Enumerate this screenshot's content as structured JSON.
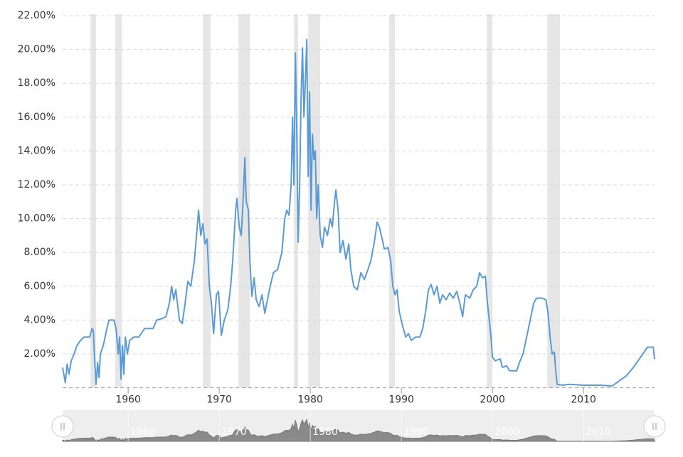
{
  "chart_data": {
    "type": "line",
    "x": [
      1952.8,
      1953.1,
      1953.3,
      1953.5,
      1953.75,
      1954.06,
      1954.38,
      1954.77,
      1955.16,
      1955.78,
      1956.02,
      1956.17,
      1956.33,
      1956.48,
      1956.64,
      1956.8,
      1956.95,
      1957.27,
      1957.58,
      1957.89,
      1958.44,
      1958.67,
      1958.91,
      1959.06,
      1959.22,
      1959.38,
      1959.53,
      1959.69,
      1959.92,
      1960.16,
      1960.63,
      1961.17,
      1961.8,
      1962.73,
      1963.13,
      1963.75,
      1964.14,
      1964.53,
      1964.77,
      1965.0,
      1965.23,
      1965.63,
      1965.94,
      1966.25,
      1966.56,
      1966.88,
      1967.27,
      1967.58,
      1967.73,
      1967.97,
      1968.2,
      1968.44,
      1968.67,
      1968.91,
      1969.14,
      1969.38,
      1969.69,
      1969.92,
      1970.23,
      1970.55,
      1970.94,
      1971.25,
      1971.48,
      1971.8,
      1971.95,
      1972.19,
      1972.42,
      1972.66,
      1972.81,
      1972.97,
      1973.2,
      1973.36,
      1973.59,
      1973.83,
      1974.06,
      1974.38,
      1974.69,
      1975.0,
      1975.47,
      1975.94,
      1976.41,
      1976.88,
      1977.19,
      1977.42,
      1977.66,
      1977.89,
      1978.05,
      1978.2,
      1978.36,
      1978.52,
      1978.67,
      1978.83,
      1978.98,
      1979.14,
      1979.3,
      1979.45,
      1979.61,
      1979.77,
      1979.92,
      1980.08,
      1980.23,
      1980.39,
      1980.55,
      1980.7,
      1980.86,
      1981.09,
      1981.33,
      1981.56,
      1981.88,
      1982.19,
      1982.42,
      1982.66,
      1982.81,
      1983.05,
      1983.28,
      1983.59,
      1983.91,
      1984.22,
      1984.45,
      1984.77,
      1985.16,
      1985.55,
      1985.94,
      1986.33,
      1986.64,
      1987.03,
      1987.34,
      1987.58,
      1987.89,
      1988.13,
      1988.52,
      1988.83,
      1989.06,
      1989.3,
      1989.53,
      1989.77,
      1990.16,
      1990.47,
      1990.78,
      1991.09,
      1991.56,
      1992.03,
      1992.34,
      1992.66,
      1992.97,
      1993.28,
      1993.59,
      1993.91,
      1994.22,
      1994.53,
      1994.92,
      1995.31,
      1995.7,
      1996.09,
      1996.41,
      1996.72,
      1997.03,
      1997.5,
      1997.89,
      1998.28,
      1998.59,
      1998.91,
      1999.22,
      1999.45,
      1999.69,
      1999.84,
      2000.0,
      2000.31,
      2000.86,
      2001.09,
      2001.56,
      2001.88,
      2002.66,
      2002.97,
      2003.36,
      2003.75,
      2004.14,
      2004.53,
      2004.84,
      2005.47,
      2005.86,
      2006.09,
      2006.33,
      2006.56,
      2006.8,
      2006.95,
      2007.11,
      2007.66,
      2008.44,
      2010.0,
      2011.95,
      2013.13,
      2013.91,
      2014.69,
      2015.47,
      2016.25,
      2017.03,
      2017.66,
      2017.81
    ],
    "series": [
      {
        "color": "#5b9bd5",
        "values": [
          1.2,
          0.3,
          1.4,
          0.8,
          1.6,
          2.0,
          2.5,
          2.8,
          3.0,
          3.0,
          3.5,
          3.4,
          1.5,
          0.2,
          1.5,
          0.6,
          2.0,
          2.5,
          3.3,
          4.0,
          4.0,
          3.5,
          2.0,
          3.0,
          0.5,
          2.5,
          0.8,
          3.0,
          2.0,
          2.8,
          3.0,
          3.0,
          3.5,
          3.5,
          4.0,
          4.1,
          4.2,
          5.0,
          6.0,
          5.2,
          5.8,
          4.0,
          3.8,
          5.0,
          6.3,
          6.0,
          7.5,
          9.5,
          10.5,
          9.0,
          9.7,
          8.5,
          8.8,
          6.0,
          5.0,
          3.2,
          5.5,
          5.7,
          3.1,
          4.0,
          4.6,
          6.0,
          7.5,
          10.5,
          11.2,
          9.5,
          9.0,
          11.5,
          13.6,
          11.0,
          10.5,
          7.5,
          5.4,
          6.5,
          5.2,
          4.8,
          5.5,
          4.4,
          5.7,
          6.8,
          7.0,
          8.0,
          10.0,
          10.5,
          10.2,
          12.0,
          16.0,
          12.0,
          19.8,
          15.0,
          8.6,
          12.0,
          17.0,
          20.1,
          16.0,
          18.0,
          20.6,
          12.5,
          17.5,
          10.5,
          15.0,
          13.5,
          14.0,
          10.0,
          12.0,
          9.0,
          8.3,
          9.5,
          9.0,
          10.0,
          9.5,
          11.0,
          11.7,
          10.5,
          8.0,
          8.7,
          7.6,
          8.5,
          7.0,
          6.0,
          5.8,
          6.8,
          6.4,
          7.0,
          7.5,
          8.6,
          9.8,
          9.5,
          8.8,
          8.2,
          8.3,
          7.5,
          6.0,
          5.5,
          5.8,
          4.5,
          3.6,
          3.0,
          3.2,
          2.8,
          3.0,
          3.0,
          3.5,
          4.5,
          5.8,
          6.1,
          5.5,
          6.0,
          5.0,
          5.5,
          5.2,
          5.6,
          5.3,
          5.7,
          5.0,
          4.2,
          5.5,
          5.3,
          5.8,
          6.0,
          6.8,
          6.5,
          6.6,
          5.0,
          3.8,
          3.0,
          1.8,
          1.6,
          1.7,
          1.2,
          1.3,
          1.0,
          1.0,
          1.5,
          2.0,
          3.0,
          4.0,
          5.0,
          5.3,
          5.3,
          5.2,
          4.5,
          3.0,
          2.0,
          2.1,
          1.0,
          0.2,
          0.15,
          0.2,
          0.15,
          0.15,
          0.1,
          0.4,
          0.7,
          1.2,
          1.8,
          2.4,
          2.4,
          1.7
        ]
      }
    ],
    "recessions": [
      [
        1955.86,
        1956.48
      ],
      [
        1958.59,
        1959.3
      ],
      [
        1968.2,
        1969.06
      ],
      [
        1972.11,
        1973.36
      ],
      [
        1978.2,
        1978.67
      ],
      [
        1979.77,
        1981.09
      ],
      [
        1988.67,
        1989.3
      ],
      [
        1999.38,
        2000.0
      ],
      [
        2006.02,
        2007.42
      ]
    ],
    "recession_color": "#e6e6e6",
    "xlim": [
      1952.8,
      2017.8
    ],
    "xticks": [
      1960,
      1970,
      1980,
      1990,
      2000,
      2010
    ],
    "ylim": [
      0,
      22
    ],
    "yticks": [
      {
        "value": 2,
        "label": "2.00%"
      },
      {
        "value": 4,
        "label": "4.00%"
      },
      {
        "value": 6,
        "label": "6.00%"
      },
      {
        "value": 8,
        "label": "8.00%"
      },
      {
        "value": 10,
        "label": "10.00%"
      },
      {
        "value": 12,
        "label": "12.00%"
      },
      {
        "value": 14,
        "label": "14.00%"
      },
      {
        "value": 16,
        "label": "16.00%"
      },
      {
        "value": 18,
        "label": "18.00%"
      },
      {
        "value": 20,
        "label": "20.00%"
      },
      {
        "value": 22,
        "label": "22.00%"
      }
    ],
    "grid": true
  }
}
